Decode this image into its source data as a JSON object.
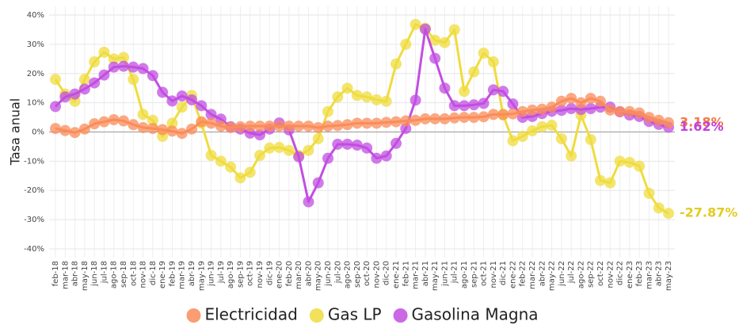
{
  "chart_data": {
    "type": "line",
    "ylabel": "Tasa anual",
    "categories": [
      "feb-18",
      "mar-18",
      "abr-18",
      "may-18",
      "jun-18",
      "jul-18",
      "ago-18",
      "sep-18",
      "oct-18",
      "nov-18",
      "dic-18",
      "ene-19",
      "feb-19",
      "mar-19",
      "abr-19",
      "may-19",
      "jun-19",
      "jul-19",
      "ago-19",
      "sep-19",
      "oct-19",
      "nov-19",
      "dic-19",
      "ene-20",
      "feb-20",
      "mar-20",
      "abr-20",
      "may-20",
      "jun-20",
      "jul-20",
      "ago-20",
      "sep-20",
      "oct-20",
      "nov-20",
      "dic-20",
      "ene-21",
      "feb-21",
      "mar-21",
      "abr-21",
      "may-21",
      "jun-21",
      "jul-21",
      "ago-21",
      "sep-21",
      "oct-21",
      "nov-21",
      "dic-21",
      "ene-22",
      "feb-22",
      "mar-22",
      "abr-22",
      "may-22",
      "jun-22",
      "jul-22",
      "ago-22",
      "sep-22",
      "oct-22",
      "nov-22",
      "dic-22",
      "ene-23",
      "feb-23",
      "mar-23",
      "abr-23",
      "may-23"
    ],
    "series": [
      {
        "name": "Electricidad",
        "color": "#fa8c5a",
        "label_color": "#f47a44",
        "end_label": "3.18%",
        "values": [
          1.2,
          0.5,
          -0.2,
          1,
          2.8,
          3.5,
          4.2,
          3.8,
          2.5,
          1.5,
          1.2,
          0.8,
          0.3,
          -0.5,
          1,
          3.5,
          3,
          2,
          1.5,
          1.8,
          2,
          2,
          2,
          2,
          2,
          2,
          2,
          1.5,
          2,
          2.2,
          2.5,
          3,
          3,
          3,
          3.3,
          3.5,
          3.8,
          4,
          4.5,
          4.5,
          4.5,
          4.8,
          5,
          5,
          5.2,
          6,
          6,
          6.2,
          7,
          7.5,
          7.8,
          8.5,
          10.5,
          11.5,
          10,
          11.5,
          10.5,
          7.5,
          7,
          7,
          6.5,
          5,
          4,
          3.18
        ]
      },
      {
        "name": "Gas LP",
        "color": "#efdc3e",
        "label_color": "#e3cb22",
        "end_label": "-27.87%",
        "values": [
          18,
          13,
          10.5,
          18,
          24,
          27.3,
          25,
          25.5,
          18,
          6,
          4,
          -1.5,
          3,
          8.5,
          12.5,
          3,
          -8,
          -10,
          -12,
          -15.7,
          -13.8,
          -8,
          -5.5,
          -5.3,
          -6.3,
          -8,
          -6.3,
          -2.3,
          7,
          12,
          15,
          12.5,
          12,
          11,
          10.5,
          23.3,
          30,
          36.8,
          35.5,
          31.4,
          30.6,
          35,
          13.9,
          20.6,
          27,
          24,
          5.8,
          -3,
          -1.5,
          0.4,
          1.8,
          2.3,
          -2.3,
          -8.2,
          5.8,
          -2.6,
          -16.6,
          -17.4,
          -10,
          -10.4,
          -11.7,
          -21,
          -26,
          -27.87
        ]
      },
      {
        "name": "Gasolina Magna",
        "color": "#c24ee2",
        "label_color": "#c23fe0",
        "end_label": "1.62%",
        "values": [
          8.7,
          12,
          13,
          14.7,
          16.8,
          19.5,
          22.2,
          22.5,
          22.2,
          21.7,
          19.3,
          13.6,
          10.6,
          12.3,
          11,
          9,
          6,
          4.4,
          1.8,
          1,
          -0.4,
          -1,
          1,
          3.1,
          0.7,
          -8.5,
          -23.9,
          -17.4,
          -9,
          -4.2,
          -4.2,
          -4.5,
          -5.5,
          -9,
          -8.2,
          -3.9,
          1.2,
          10.9,
          35.2,
          25.2,
          15,
          9,
          9,
          9.3,
          9.8,
          14.4,
          13.9,
          9.6,
          5,
          5.3,
          6.3,
          7.1,
          7.4,
          8,
          7.7,
          8,
          8.5,
          8.5,
          6.9,
          5.8,
          5.3,
          3.6,
          2.6,
          1.62
        ]
      }
    ],
    "draw_order": [
      1,
      2,
      0
    ],
    "ylim": [
      -43,
      43
    ],
    "yticks": [
      {
        "value": -40,
        "label": "-40%"
      },
      {
        "value": -30,
        "label": "-30%"
      },
      {
        "value": -20,
        "label": "-20%"
      },
      {
        "value": -10,
        "label": "-10%"
      },
      {
        "value": 0,
        "label": "0%"
      },
      {
        "value": 10,
        "label": "10%"
      },
      {
        "value": 20,
        "label": "20%"
      },
      {
        "value": 30,
        "label": "30%"
      },
      {
        "value": 40,
        "label": "40%"
      }
    ],
    "grid": true,
    "legend": "bottom"
  }
}
